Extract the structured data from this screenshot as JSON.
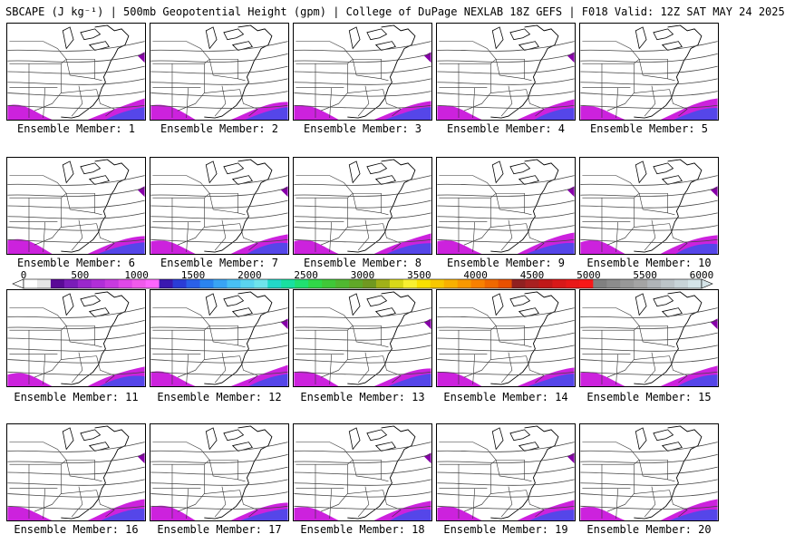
{
  "header": {
    "title": "SBCAPE (J kg⁻¹) | 500mb Geopotential Height (gpm) | College of DuPage NEXLAB 18Z GEFS | F018 Valid: 12Z SAT MAY 24 2025"
  },
  "member_prefix": "Ensemble Member: ",
  "members": [
    {
      "label": "Ensemble Member: 1"
    },
    {
      "label": "Ensemble Member: 2"
    },
    {
      "label": "Ensemble Member: 3"
    },
    {
      "label": "Ensemble Member: 4"
    },
    {
      "label": "Ensemble Member: 5"
    },
    {
      "label": "Ensemble Member: 6"
    },
    {
      "label": "Ensemble Member: 7"
    },
    {
      "label": "Ensemble Member: 8"
    },
    {
      "label": "Ensemble Member: 9"
    },
    {
      "label": "Ensemble Member: 10"
    },
    {
      "label": "Ensemble Member: 11"
    },
    {
      "label": "Ensemble Member: 12"
    },
    {
      "label": "Ensemble Member: 13"
    },
    {
      "label": "Ensemble Member: 14"
    },
    {
      "label": "Ensemble Member: 15"
    },
    {
      "label": "Ensemble Member: 16"
    },
    {
      "label": "Ensemble Member: 17"
    },
    {
      "label": "Ensemble Member: 18"
    },
    {
      "label": "Ensemble Member: 19"
    },
    {
      "label": "Ensemble Member: 20"
    }
  ],
  "colorbar": {
    "min": 0,
    "max": 6000,
    "tick_labels": [
      "0",
      "500",
      "1000",
      "1500",
      "2000",
      "2500",
      "3000",
      "3500",
      "4000",
      "4500",
      "5000",
      "5500",
      "6000"
    ],
    "colors": [
      "#ffffff",
      "#e6e6e6",
      "#5a0a96",
      "#7a1cb8",
      "#9a28cc",
      "#b02ed8",
      "#c83ae0",
      "#e048e8",
      "#f05aec",
      "#ff66ff",
      "#3a18b0",
      "#2a3cd6",
      "#2a60e8",
      "#2a84f0",
      "#38a4f4",
      "#48c0f4",
      "#5ad4f0",
      "#6ee4ec",
      "#22d8c8",
      "#18e0a0",
      "#20e070",
      "#30d848",
      "#40c838",
      "#50b830",
      "#60a828",
      "#709820",
      "#a0b018",
      "#d8d818",
      "#f8f030",
      "#f8e000",
      "#f8c800",
      "#f8b000",
      "#f89800",
      "#f88000",
      "#f06800",
      "#e85000",
      "#902020",
      "#a82020",
      "#c01818",
      "#d81818",
      "#e81818",
      "#f81818",
      "#808080",
      "#8c8c8c",
      "#989898",
      "#a4a4a4",
      "#b0b4b8",
      "#bcc4c8",
      "#c8d4d8",
      "#d4e4e8"
    ]
  },
  "colors": {
    "cape_core": "#cc22dd",
    "cape_edge": "#8800aa",
    "cape_peak": "#2255ee",
    "outline": "#303030"
  }
}
